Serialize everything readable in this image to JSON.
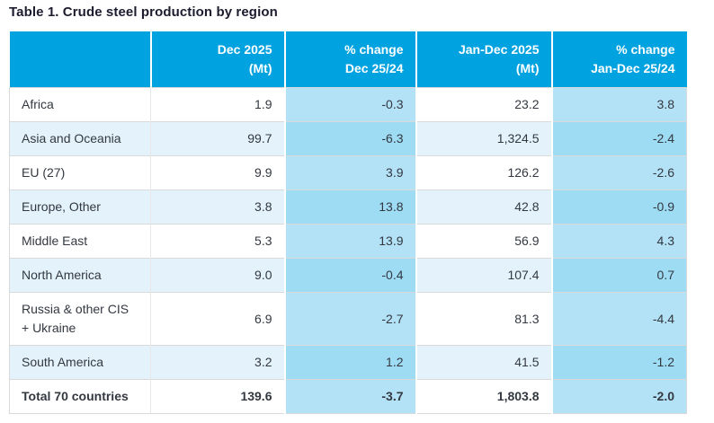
{
  "page_title": "Table 1. Crude steel production by region",
  "colors": {
    "header_bg": "#00A2E0",
    "header_text": "#FFFFFF",
    "row_alt_bg": "#E4F3FB",
    "pct_col_bg_light": "#B3E2F7",
    "pct_col_bg_dark": "#9EDCF4",
    "border": "#D9D9D9",
    "body_text": "#333840",
    "title_text": "#1C1C2E"
  },
  "table": {
    "headers": [
      {
        "line1": "",
        "line2": ""
      },
      {
        "line1": "Dec 2025",
        "line2": "(Mt)"
      },
      {
        "line1": "% change",
        "line2": "Dec 25/24"
      },
      {
        "line1": "Jan-Dec 2025",
        "line2": "(Mt)"
      },
      {
        "line1": "% change",
        "line2": "Jan-Dec 25/24"
      }
    ],
    "rows": [
      {
        "region": "Africa",
        "dec_mt": "1.9",
        "pct_change_dec": "-0.3",
        "jandec_mt": "23.2",
        "pct_change_jandec": "3.8"
      },
      {
        "region": "Asia and Oceania",
        "dec_mt": "99.7",
        "pct_change_dec": "-6.3",
        "jandec_mt": "1,324.5",
        "pct_change_jandec": "-2.4"
      },
      {
        "region": "EU (27)",
        "dec_mt": "9.9",
        "pct_change_dec": "3.9",
        "jandec_mt": "126.2",
        "pct_change_jandec": "-2.6"
      },
      {
        "region": "Europe, Other",
        "dec_mt": "3.8",
        "pct_change_dec": "13.8",
        "jandec_mt": "42.8",
        "pct_change_jandec": "-0.9"
      },
      {
        "region": "Middle East",
        "dec_mt": "5.3",
        "pct_change_dec": "13.9",
        "jandec_mt": "56.9",
        "pct_change_jandec": "4.3"
      },
      {
        "region": "North America",
        "dec_mt": "9.0",
        "pct_change_dec": "-0.4",
        "jandec_mt": "107.4",
        "pct_change_jandec": "0.7"
      },
      {
        "region": "Russia & other CIS + Ukraine",
        "dec_mt": "6.9",
        "pct_change_dec": "-2.7",
        "jandec_mt": "81.3",
        "pct_change_jandec": "-4.4"
      },
      {
        "region": "South America",
        "dec_mt": "3.2",
        "pct_change_dec": "1.2",
        "jandec_mt": "41.5",
        "pct_change_jandec": "-1.2"
      }
    ],
    "total_row": {
      "region": "Total 70 countries",
      "dec_mt": "139.6",
      "pct_change_dec": "-3.7",
      "jandec_mt": "1,803.8",
      "pct_change_jandec": "-2.0"
    }
  }
}
